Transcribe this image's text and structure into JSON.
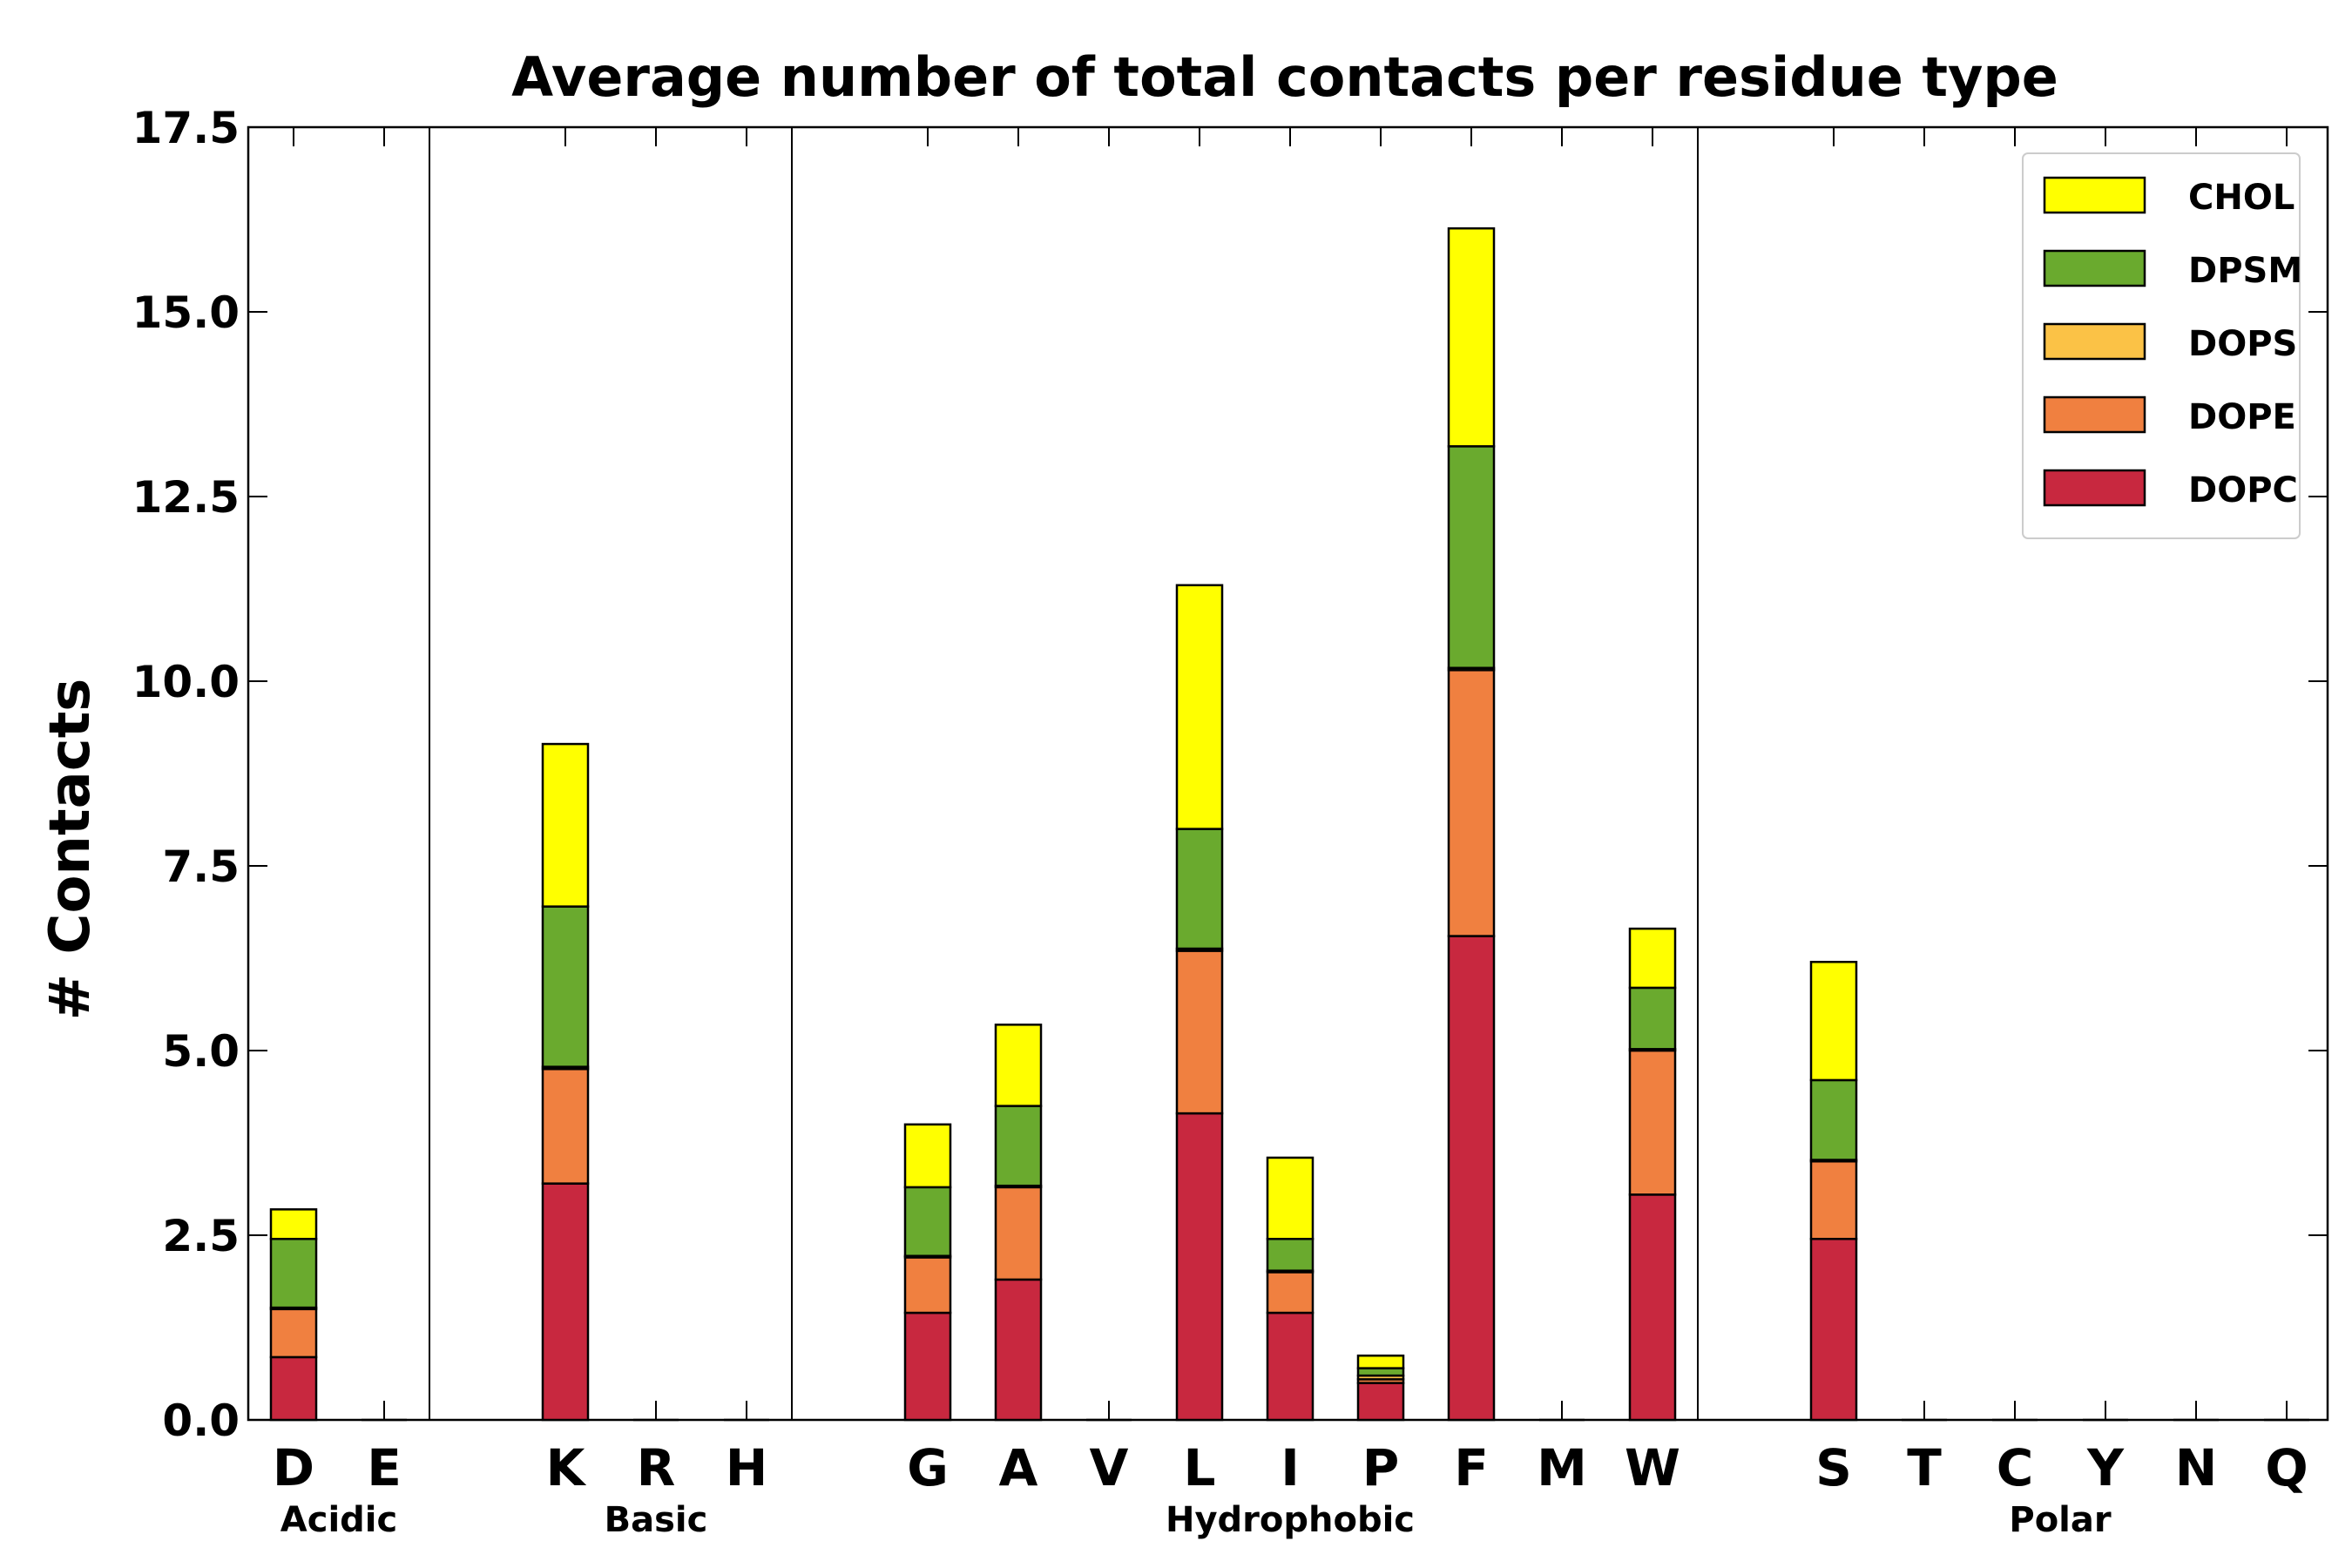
{
  "chart_data": {
    "type": "bar",
    "stacked": true,
    "title": "Average number of total contacts per residue type",
    "xlabel": "",
    "ylabel": "# Contacts",
    "ylim": [
      0,
      17.5
    ],
    "yticks": [
      "0.0",
      "2.5",
      "5.0",
      "7.5",
      "10.0",
      "12.5",
      "15.0",
      "17.5"
    ],
    "categories": [
      "D",
      "E",
      "K",
      "R",
      "H",
      "G",
      "A",
      "V",
      "L",
      "I",
      "P",
      "F",
      "M",
      "W",
      "S",
      "T",
      "C",
      "Y",
      "N",
      "Q"
    ],
    "groups": [
      {
        "name": "Acidic",
        "members": [
          "D",
          "E"
        ]
      },
      {
        "name": "Basic",
        "members": [
          "K",
          "R",
          "H"
        ]
      },
      {
        "name": "Hydrophobic",
        "members": [
          "G",
          "A",
          "V",
          "L",
          "I",
          "P",
          "F",
          "M",
          "W"
        ]
      },
      {
        "name": "Polar",
        "members": [
          "S",
          "T",
          "C",
          "Y",
          "N",
          "Q"
        ]
      }
    ],
    "series": [
      {
        "name": "DOPC",
        "color": "#c8283f",
        "values": [
          0.85,
          0,
          3.2,
          0,
          0,
          1.45,
          1.9,
          0,
          4.15,
          1.45,
          0.5,
          6.55,
          0,
          3.05,
          2.45,
          0,
          0,
          0,
          0,
          0
        ]
      },
      {
        "name": "DOPE",
        "color": "#f08040",
        "values": [
          0.65,
          0,
          1.55,
          0,
          0,
          0.75,
          1.25,
          0,
          2.2,
          0.55,
          0.05,
          3.6,
          0,
          1.95,
          1.05,
          0,
          0,
          0,
          0,
          0
        ]
      },
      {
        "name": "DOPS",
        "color": "#fbc246",
        "values": [
          0.02,
          0,
          0.03,
          0,
          0,
          0.02,
          0.02,
          0,
          0.03,
          0.02,
          0.05,
          0.03,
          0,
          0.02,
          0.02,
          0,
          0,
          0,
          0,
          0
        ]
      },
      {
        "name": "DPSM",
        "color": "#6aaa2e",
        "values": [
          0.93,
          0,
          2.17,
          0,
          0,
          0.93,
          1.08,
          0,
          1.62,
          0.43,
          0.1,
          3.0,
          0,
          0.83,
          1.08,
          0,
          0,
          0,
          0,
          0
        ]
      },
      {
        "name": "CHOL",
        "color": "#ffff00",
        "values": [
          0.4,
          0,
          2.2,
          0,
          0,
          0.85,
          1.1,
          0,
          3.3,
          1.1,
          0.17,
          2.95,
          0,
          0.8,
          1.6,
          0,
          0,
          0,
          0,
          0
        ]
      }
    ],
    "legend_order": [
      "CHOL",
      "DPSM",
      "DOPS",
      "DOPE",
      "DOPC"
    ],
    "legend_position": "top-right",
    "grid": false
  }
}
